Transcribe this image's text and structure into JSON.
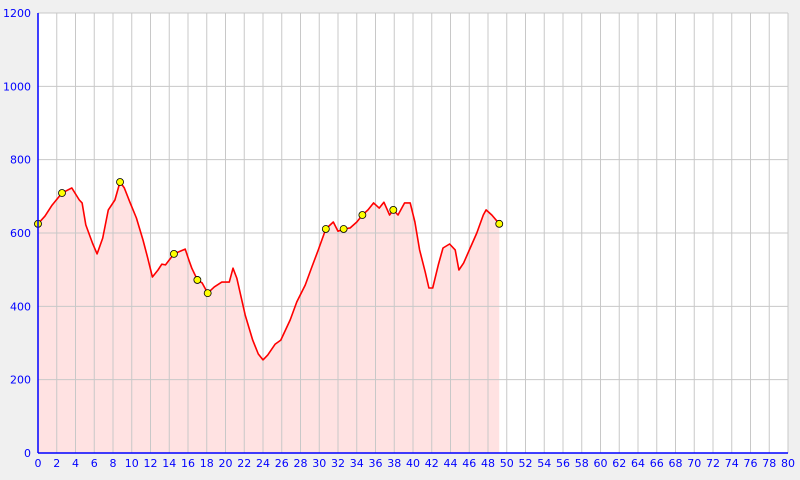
{
  "chart_data": {
    "type": "area",
    "title": "",
    "xlabel": "",
    "ylabel": "",
    "xlim": [
      0,
      80
    ],
    "ylim": [
      0,
      1200
    ],
    "x_ticks": [
      0,
      2,
      4,
      6,
      8,
      10,
      12,
      14,
      16,
      18,
      20,
      22,
      24,
      26,
      28,
      30,
      32,
      34,
      36,
      38,
      40,
      42,
      44,
      46,
      48,
      50,
      52,
      54,
      56,
      58,
      60,
      62,
      64,
      66,
      68,
      70,
      72,
      74,
      76,
      78,
      80
    ],
    "y_ticks": [
      0,
      200,
      400,
      600,
      800,
      1000,
      1200
    ],
    "grid": true,
    "profile": [
      [
        0,
        625
      ],
      [
        0.75,
        646
      ],
      [
        1.5,
        676
      ],
      [
        2.56,
        709
      ],
      [
        3.6,
        723
      ],
      [
        4.4,
        690
      ],
      [
        4.7,
        682
      ],
      [
        5.1,
        622
      ],
      [
        5.8,
        573
      ],
      [
        6.3,
        543
      ],
      [
        6.9,
        586
      ],
      [
        7.5,
        663
      ],
      [
        8.2,
        690
      ],
      [
        8.75,
        739
      ],
      [
        9.2,
        723
      ],
      [
        9.8,
        684
      ],
      [
        10.5,
        641
      ],
      [
        11.2,
        581
      ],
      [
        11.7,
        532
      ],
      [
        12.2,
        480
      ],
      [
        12.8,
        499
      ],
      [
        13.2,
        515
      ],
      [
        13.6,
        513
      ],
      [
        14.5,
        543
      ],
      [
        15.7,
        556
      ],
      [
        16.1,
        526
      ],
      [
        16.4,
        504
      ],
      [
        17.0,
        472
      ],
      [
        17.5,
        464
      ],
      [
        18.1,
        436
      ],
      [
        18.8,
        453
      ],
      [
        19.6,
        466
      ],
      [
        20.4,
        466
      ],
      [
        20.8,
        504
      ],
      [
        21.2,
        477
      ],
      [
        22.1,
        376
      ],
      [
        22.9,
        308
      ],
      [
        23.5,
        270
      ],
      [
        24.0,
        254
      ],
      [
        24.5,
        267
      ],
      [
        25.3,
        297
      ],
      [
        25.9,
        308
      ],
      [
        26.9,
        363
      ],
      [
        27.6,
        412
      ],
      [
        28.5,
        458
      ],
      [
        29.2,
        507
      ],
      [
        29.9,
        554
      ],
      [
        30.7,
        611
      ],
      [
        31.5,
        630
      ],
      [
        32.0,
        605
      ],
      [
        32.6,
        611
      ],
      [
        33.3,
        614
      ],
      [
        34.0,
        630
      ],
      [
        34.6,
        649
      ],
      [
        35.2,
        663
      ],
      [
        35.8,
        682
      ],
      [
        36.4,
        668
      ],
      [
        36.9,
        684
      ],
      [
        37.5,
        649
      ],
      [
        37.9,
        663
      ],
      [
        38.4,
        649
      ],
      [
        39.1,
        682
      ],
      [
        39.7,
        682
      ],
      [
        40.2,
        630
      ],
      [
        40.7,
        554
      ],
      [
        41.3,
        494
      ],
      [
        41.7,
        450
      ],
      [
        42.1,
        450
      ],
      [
        42.7,
        513
      ],
      [
        43.2,
        559
      ],
      [
        43.9,
        570
      ],
      [
        44.5,
        554
      ],
      [
        44.9,
        499
      ],
      [
        45.4,
        518
      ],
      [
        46.1,
        559
      ],
      [
        46.8,
        600
      ],
      [
        47.5,
        649
      ],
      [
        47.8,
        663
      ],
      [
        48.4,
        649
      ],
      [
        49.2,
        625
      ]
    ],
    "markers": [
      [
        0,
        625
      ],
      [
        2.56,
        709
      ],
      [
        8.75,
        739
      ],
      [
        14.5,
        543
      ],
      [
        17.0,
        472
      ],
      [
        18.1,
        436
      ],
      [
        30.7,
        611
      ],
      [
        32.6,
        611
      ],
      [
        34.6,
        649
      ],
      [
        37.9,
        663
      ],
      [
        49.2,
        625
      ]
    ],
    "colors": {
      "line": "#ff0000",
      "fill": "#ffe2e2",
      "marker": "#ffff00",
      "axis": "#0000ff",
      "tick_label": "#0000ff",
      "grid": "#c8c8c8",
      "plot_bg": "#ffffff",
      "page_bg": "#f0f0f0"
    }
  }
}
